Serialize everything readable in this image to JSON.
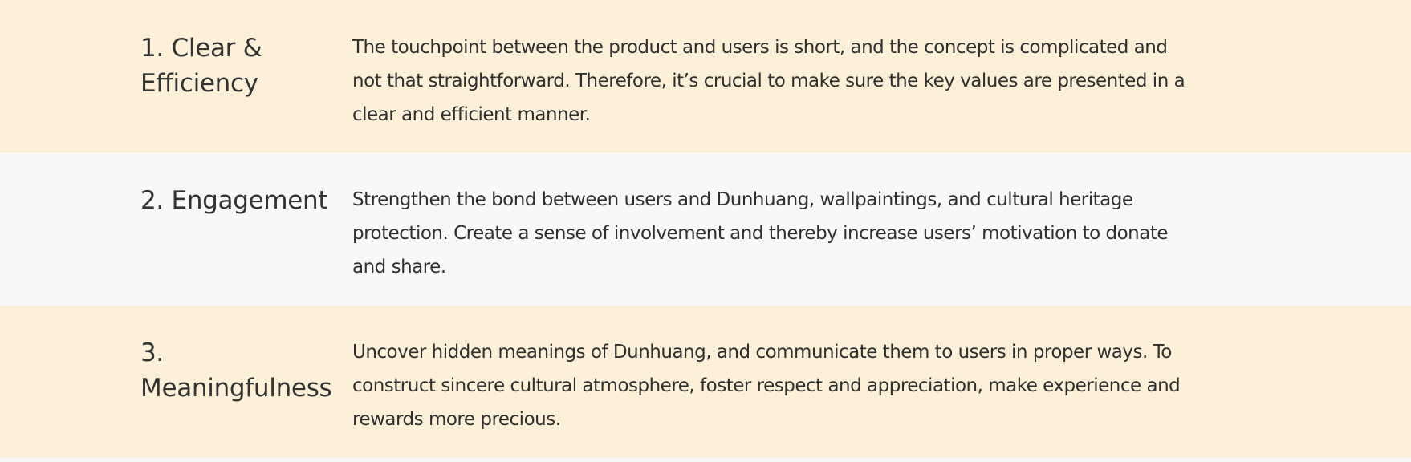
{
  "principles": [
    {
      "heading": "1. Clear & Efficiency",
      "body": "The touchpoint between the product and users is short, and the concept is complicated and not that straightforward. Therefore, it’s crucial to make sure the key values are presented in a clear and efficient manner.",
      "background": "#fcf1d8"
    },
    {
      "heading": "2. Engagement",
      "body": "Strengthen the bond between users and Dunhuang, wallpaintings, and cultural heritage protection. Create a sense of involvement and thereby increase users’ motivation to donate and share.",
      "background": "#f8f8f8"
    },
    {
      "heading": "3. Meaningfulness",
      "body": "Uncover hidden meanings of Dunhuang, and communicate them to users in proper ways. To construct sincere cultural atmosphere, foster respect and appreciation, make experience and rewards more precious.",
      "background": "#fcf1d8"
    }
  ]
}
